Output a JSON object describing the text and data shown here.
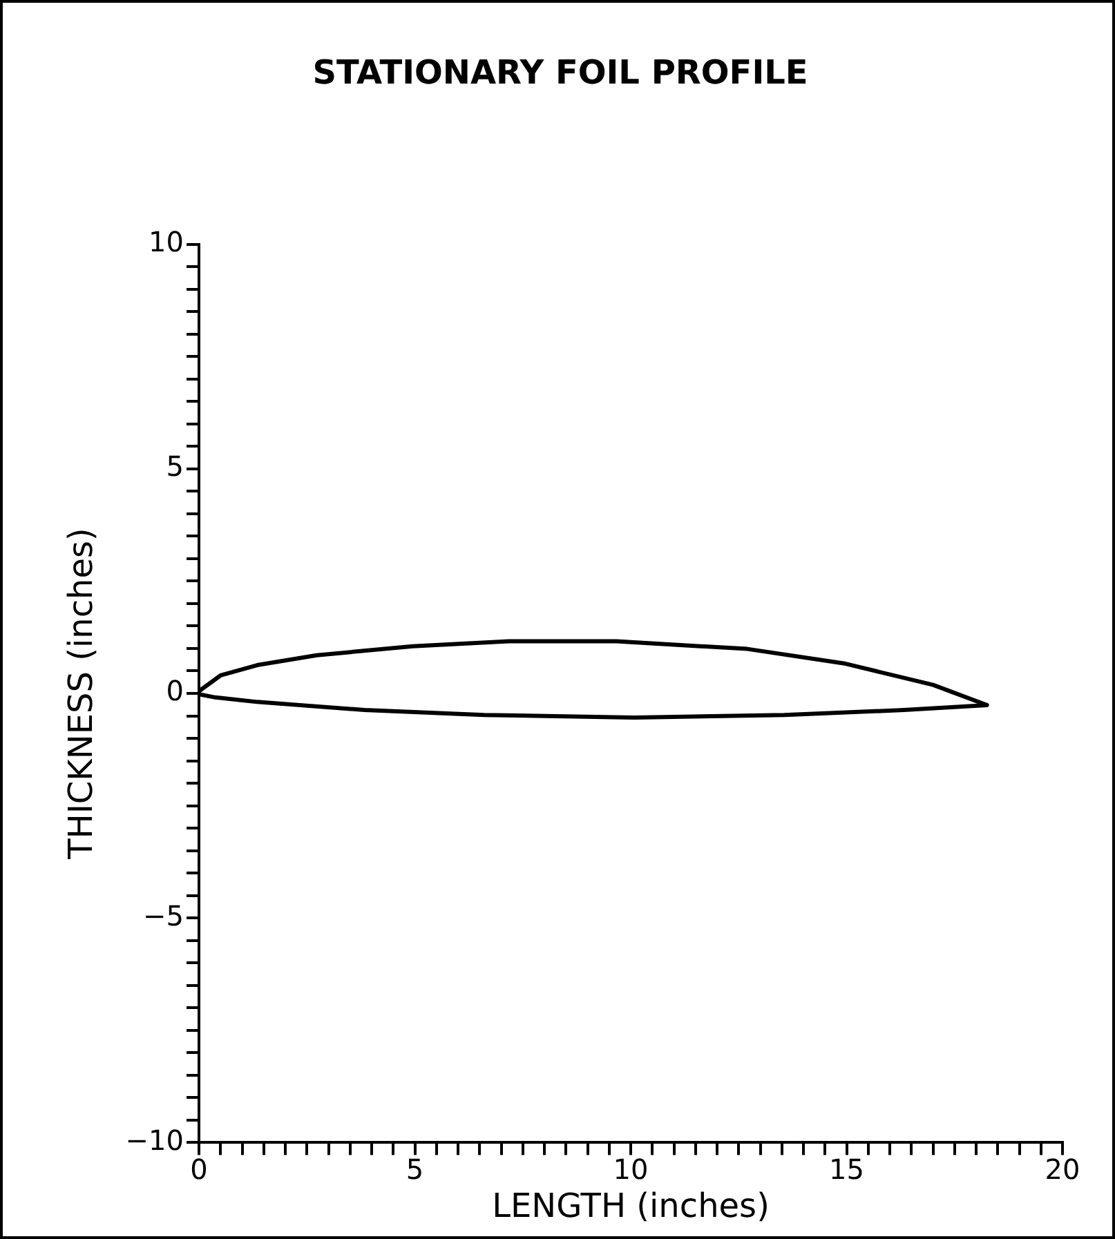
{
  "chart_data": {
    "type": "line",
    "title": "STATIONARY FOIL PROFILE",
    "xlabel": "LENGTH (inches)",
    "ylabel": "THICKNESS (inches)",
    "series": [
      {
        "color": "#000000",
        "x": [
          0,
          0.5,
          1.35,
          2.73,
          4.95,
          7.18,
          9.67,
          12.7,
          14.93,
          17.0,
          18.25,
          16.33,
          13.56,
          10.08,
          6.6,
          3.83,
          1.35,
          0.38,
          0
        ],
        "values": [
          0.05,
          0.4,
          0.63,
          0.85,
          1.05,
          1.16,
          1.16,
          0.99,
          0.67,
          0.19,
          -0.26,
          -0.37,
          -0.48,
          -0.54,
          -0.48,
          -0.37,
          -0.19,
          -0.09,
          -0.02
        ]
      }
    ],
    "xlim": [
      0,
      20
    ],
    "ylim": [
      -10,
      10
    ],
    "xticks": [
      0,
      {
        "value": 0.5,
        "label": null
      },
      {
        "value": 1,
        "label": null
      },
      {
        "value": 1.5,
        "label": null
      },
      {
        "value": 2,
        "label": null
      },
      {
        "value": 2.5,
        "label": null
      },
      {
        "value": 3,
        "label": null
      },
      {
        "value": 3.5,
        "label": null
      },
      {
        "value": 4,
        "label": null
      },
      {
        "value": 4.5,
        "label": null
      },
      5,
      {
        "value": 5.5,
        "label": null
      },
      {
        "value": 6,
        "label": null
      },
      {
        "value": 6.5,
        "label": null
      },
      {
        "value": 7,
        "label": null
      },
      {
        "value": 7.5,
        "label": null
      },
      {
        "value": 8,
        "label": null
      },
      {
        "value": 8.5,
        "label": null
      },
      {
        "value": 9,
        "label": null
      },
      {
        "value": 9.5,
        "label": null
      },
      10,
      {
        "value": 10.5,
        "label": null
      },
      {
        "value": 11,
        "label": null
      },
      {
        "value": 11.5,
        "label": null
      },
      {
        "value": 12,
        "label": null
      },
      {
        "value": 12.5,
        "label": null
      },
      {
        "value": 13,
        "label": null
      },
      {
        "value": 13.5,
        "label": null
      },
      {
        "value": 14,
        "label": null
      },
      {
        "value": 14.5,
        "label": null
      },
      15,
      {
        "value": 15.5,
        "label": null
      },
      {
        "value": 16,
        "label": null
      },
      {
        "value": 16.5,
        "label": null
      },
      {
        "value": 17,
        "label": null
      },
      {
        "value": 17.5,
        "label": null
      },
      {
        "value": 18,
        "label": null
      },
      {
        "value": 18.5,
        "label": null
      },
      {
        "value": 19,
        "label": null
      },
      {
        "value": 19.5,
        "label": null
      },
      20
    ],
    "yticks": [
      -10,
      {
        "value": -9.5,
        "label": null
      },
      {
        "value": -9,
        "label": null
      },
      {
        "value": -8.5,
        "label": null
      },
      {
        "value": -8,
        "label": null
      },
      {
        "value": -7.5,
        "label": null
      },
      {
        "value": -7,
        "label": null
      },
      {
        "value": -6.5,
        "label": null
      },
      {
        "value": -6,
        "label": null
      },
      {
        "value": -5.5,
        "label": null
      },
      -5,
      {
        "value": -4.5,
        "label": null
      },
      {
        "value": -4,
        "label": null
      },
      {
        "value": -3.5,
        "label": null
      },
      {
        "value": -3,
        "label": null
      },
      {
        "value": -2.5,
        "label": null
      },
      {
        "value": -2,
        "label": null
      },
      {
        "value": -1.5,
        "label": null
      },
      {
        "value": -1,
        "label": null
      },
      {
        "value": -0.5,
        "label": null
      },
      0,
      {
        "value": 0.5,
        "label": null
      },
      {
        "value": 1,
        "label": null
      },
      {
        "value": 1.5,
        "label": null
      },
      {
        "value": 2,
        "label": null
      },
      {
        "value": 2.5,
        "label": null
      },
      {
        "value": 3,
        "label": null
      },
      {
        "value": 3.5,
        "label": null
      },
      {
        "value": 4,
        "label": null
      },
      {
        "value": 4.5,
        "label": null
      },
      5,
      {
        "value": 5.5,
        "label": null
      },
      {
        "value": 6,
        "label": null
      },
      {
        "value": 6.5,
        "label": null
      },
      {
        "value": 7,
        "label": null
      },
      {
        "value": 7.5,
        "label": null
      },
      {
        "value": 8,
        "label": null
      },
      {
        "value": 8.5,
        "label": null
      },
      {
        "value": 9,
        "label": null
      },
      {
        "value": 9.5,
        "label": null
      },
      10
    ],
    "grid": false,
    "legend": false,
    "marker": "none",
    "line_style": "solid"
  }
}
